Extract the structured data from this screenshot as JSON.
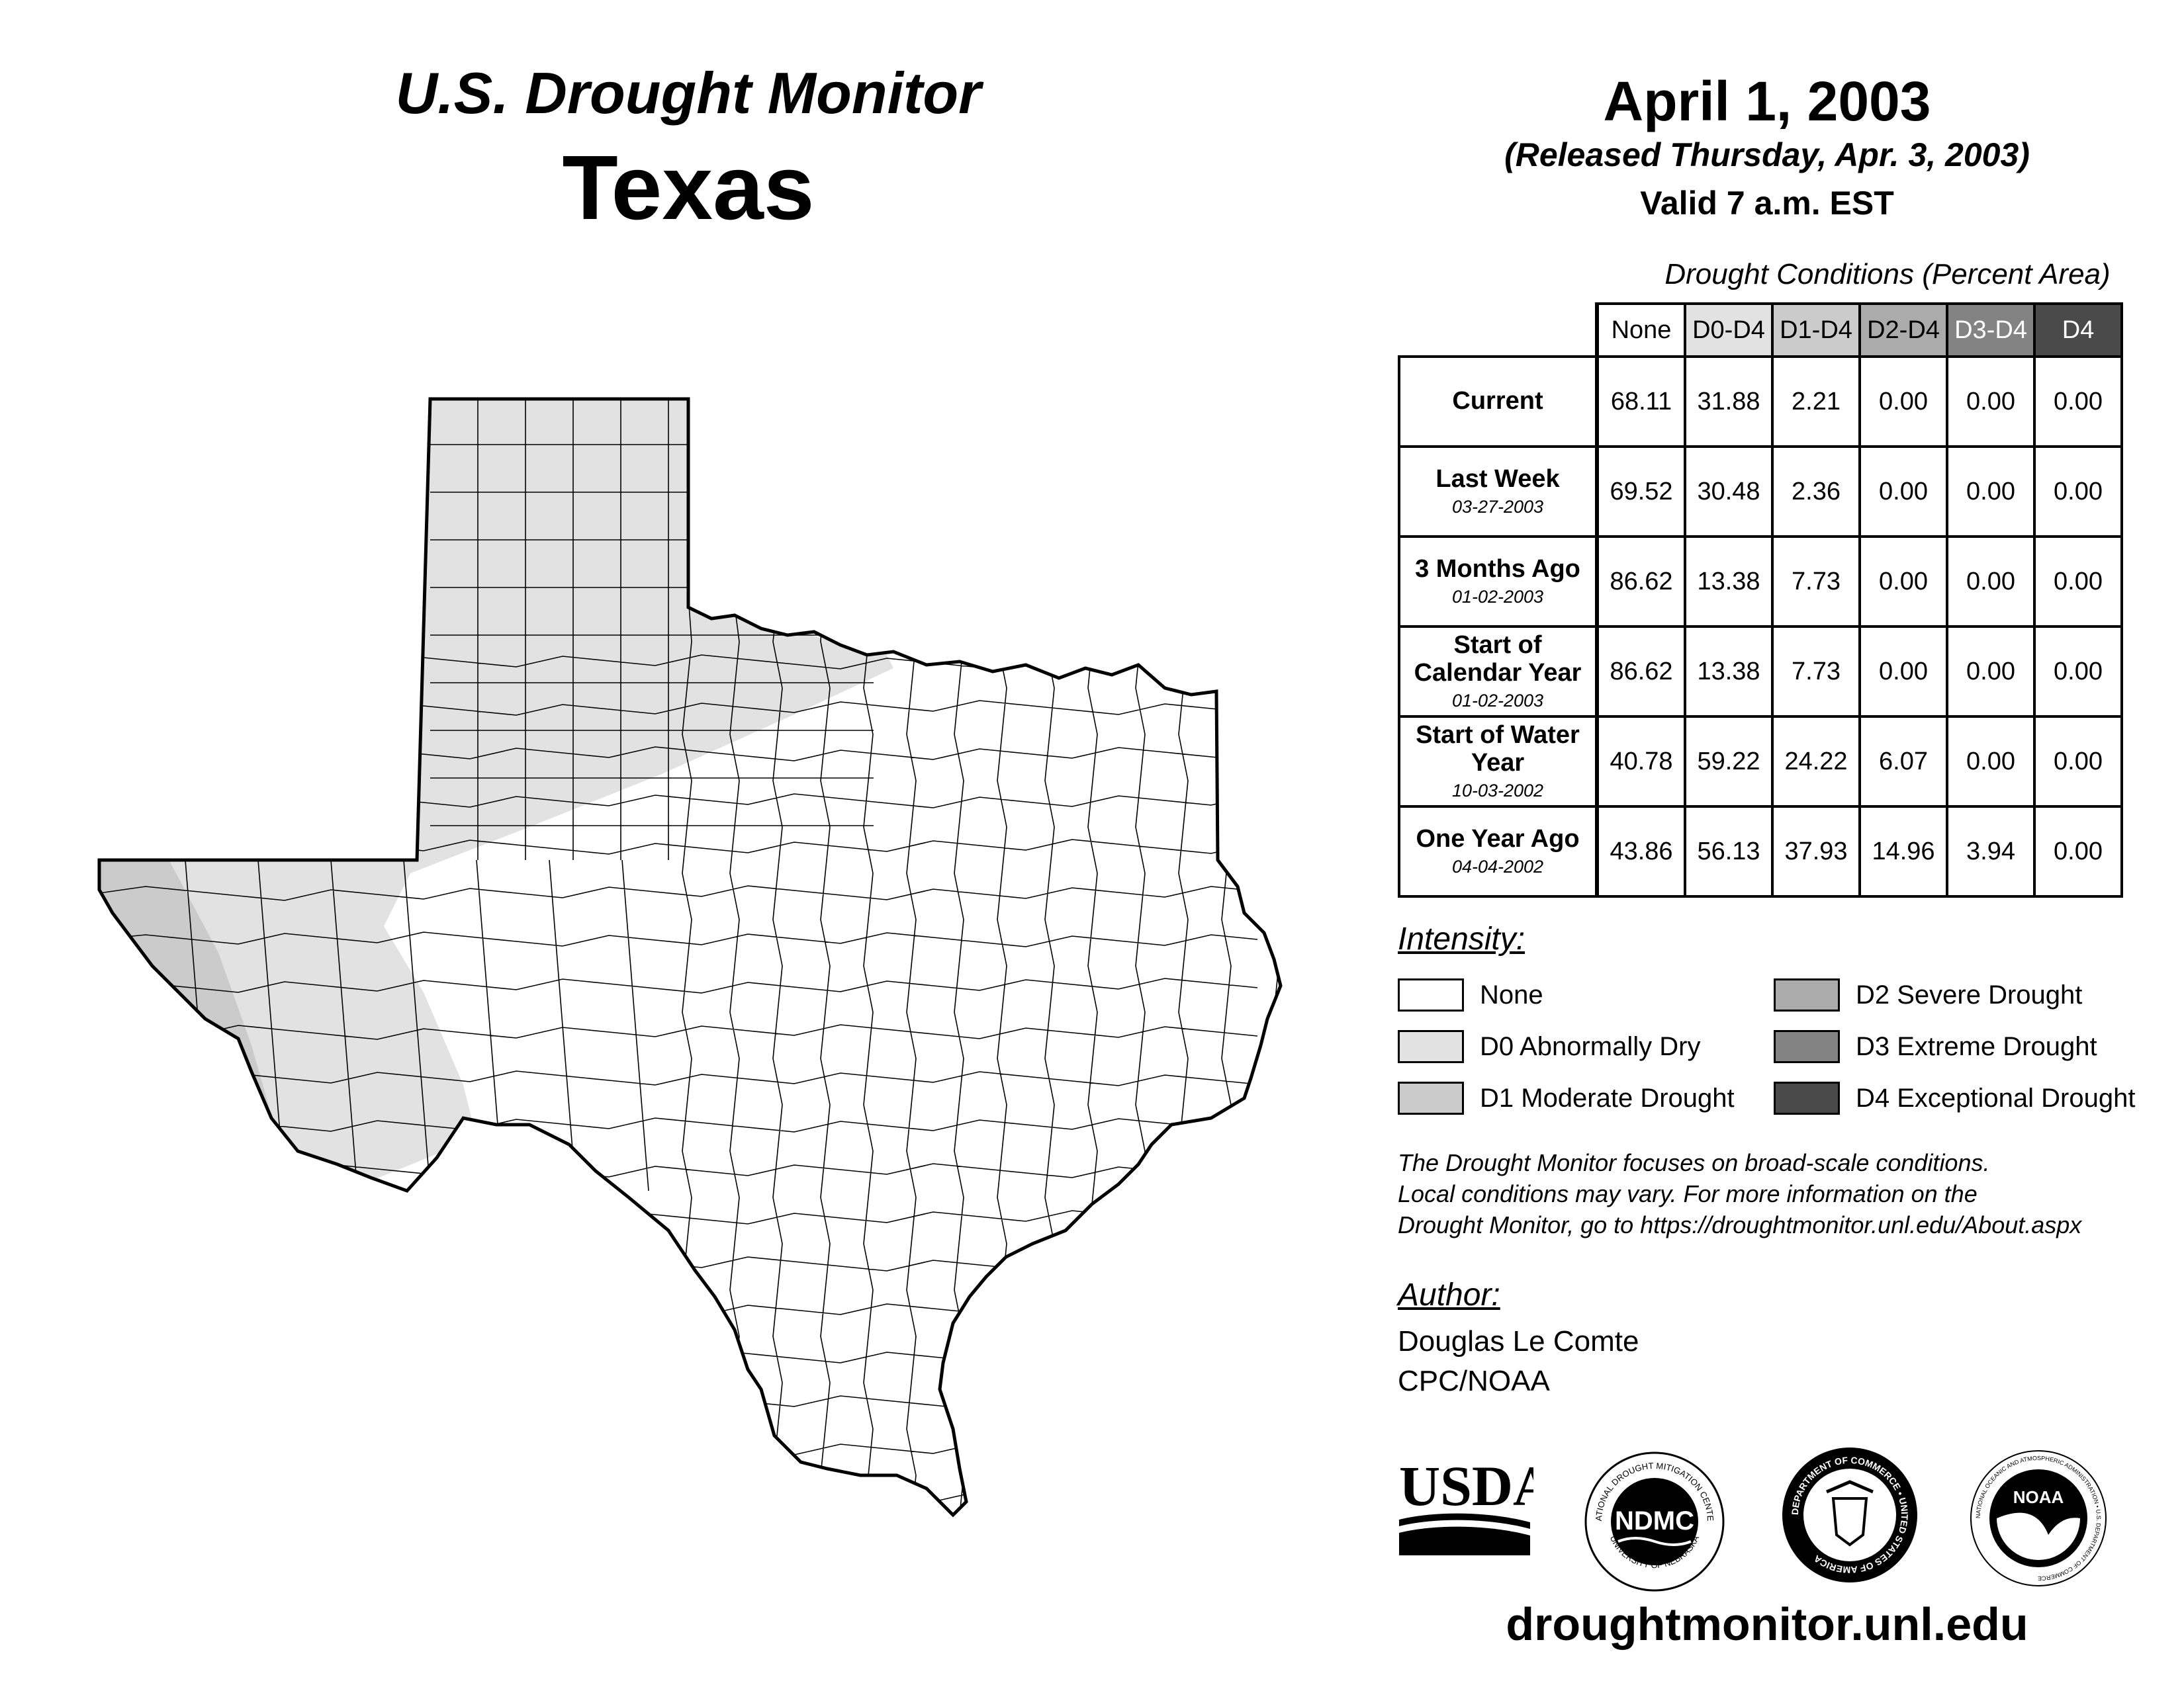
{
  "header": {
    "title": "U.S. Drought Monitor",
    "state": "Texas",
    "map_date": "April 1, 2003",
    "released": "(Released Thursday, Apr. 3, 2003)",
    "valid": "Valid 7 a.m. EST"
  },
  "table": {
    "caption": "Drought Conditions (Percent Area)",
    "columns": [
      "None",
      "D0-D4",
      "D1-D4",
      "D2-D4",
      "D3-D4",
      "D4"
    ],
    "rows": [
      {
        "label": "Current",
        "date": "",
        "values": [
          "68.11",
          "31.88",
          "2.21",
          "0.00",
          "0.00",
          "0.00"
        ]
      },
      {
        "label": "Last Week",
        "date": "03-27-2003",
        "values": [
          "69.52",
          "30.48",
          "2.36",
          "0.00",
          "0.00",
          "0.00"
        ]
      },
      {
        "label": "3 Months Ago",
        "date": "01-02-2003",
        "values": [
          "86.62",
          "13.38",
          "7.73",
          "0.00",
          "0.00",
          "0.00"
        ]
      },
      {
        "label": "Start of Calendar Year",
        "date": "01-02-2003",
        "values": [
          "86.62",
          "13.38",
          "7.73",
          "0.00",
          "0.00",
          "0.00"
        ]
      },
      {
        "label": "Start of Water Year",
        "date": "10-03-2002",
        "values": [
          "40.78",
          "59.22",
          "24.22",
          "6.07",
          "0.00",
          "0.00"
        ]
      },
      {
        "label": "One Year Ago",
        "date": "04-04-2002",
        "values": [
          "43.86",
          "56.13",
          "37.93",
          "14.96",
          "3.94",
          "0.00"
        ]
      }
    ]
  },
  "legend": {
    "title": "Intensity:",
    "items": [
      {
        "label": "None",
        "color": "#ffffff"
      },
      {
        "label": "D0 Abnormally Dry",
        "color": "#e2e2e2"
      },
      {
        "label": "D1 Moderate Drought",
        "color": "#cbcbcb"
      },
      {
        "label": "D2 Severe Drought",
        "color": "#ababab"
      },
      {
        "label": "D3 Extreme Drought",
        "color": "#838383"
      },
      {
        "label": "D4 Exceptional Drought",
        "color": "#4a4a4a"
      }
    ]
  },
  "disclaimer": {
    "line1": "The Drought Monitor focuses on broad-scale conditions.",
    "line2": "Local conditions may vary. For more information on the",
    "line3": "Drought Monitor, go to https://droughtmonitor.unl.edu/About.aspx"
  },
  "author": {
    "title": "Author:",
    "name": "Douglas Le Comte",
    "org": "CPC/NOAA"
  },
  "logos": {
    "usda": "USDA",
    "ndmc": "NDMC",
    "ndmc_top": "NATIONAL DROUGHT MITIGATION CENTER",
    "ndmc_bottom": "UNIVERSITY OF NEBRASKA",
    "doc_text": "DEPARTMENT OF COMMERCE • UNITED STATES OF AMERICA",
    "noaa": "NOAA",
    "noaa_ring": "NATIONAL OCEANIC AND ATMOSPHERIC ADMINISTRATION • U.S. DEPARTMENT OF COMMERCE"
  },
  "footer": {
    "website": "droughtmonitor.unl.edu"
  },
  "colors": {
    "d0": "#e2e2e2",
    "d1": "#cbcbcb",
    "table_d1_header": "#cbcbcb",
    "table_d2_header": "#ababab",
    "table_d3_header": "#838383",
    "table_d4_header": "#4a4a4a"
  }
}
